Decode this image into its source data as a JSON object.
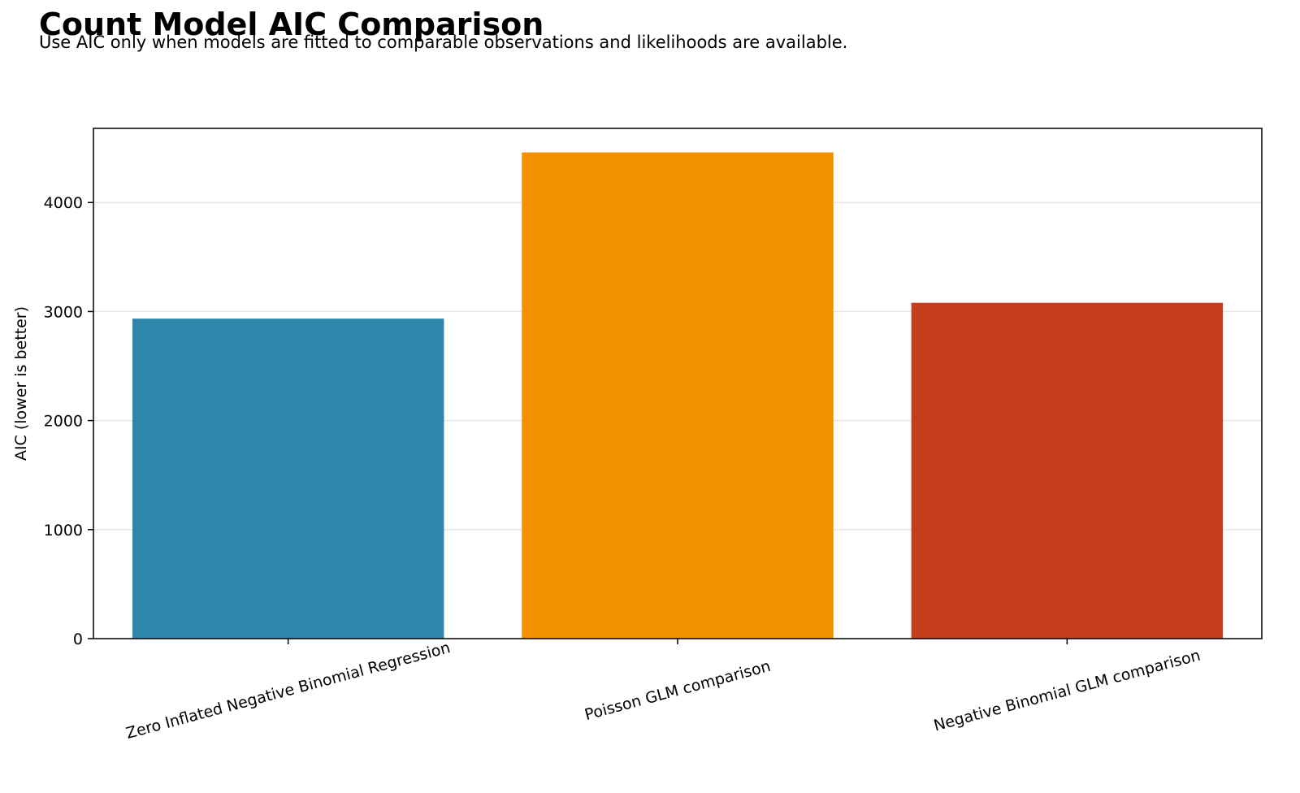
{
  "chart_data": {
    "type": "bar",
    "title": "Count Model AIC Comparison",
    "subtitle": "Use AIC only when models are fitted to comparable observations and likelihoods are available.",
    "categories": [
      "Zero Inflated Negative Binomial Regression",
      "Poisson GLM comparison",
      "Negative Binomial GLM comparison"
    ],
    "values": [
      2935,
      4460,
      3080
    ],
    "colors": [
      "#2e86ab",
      "#f39000",
      "#c73e1d"
    ],
    "xlabel": "",
    "ylabel": "AIC (lower is better)",
    "ylim": [
      0,
      4680
    ],
    "yticks": [
      0,
      1000,
      2000,
      3000,
      4000
    ],
    "grid": "y",
    "legend": "none"
  }
}
